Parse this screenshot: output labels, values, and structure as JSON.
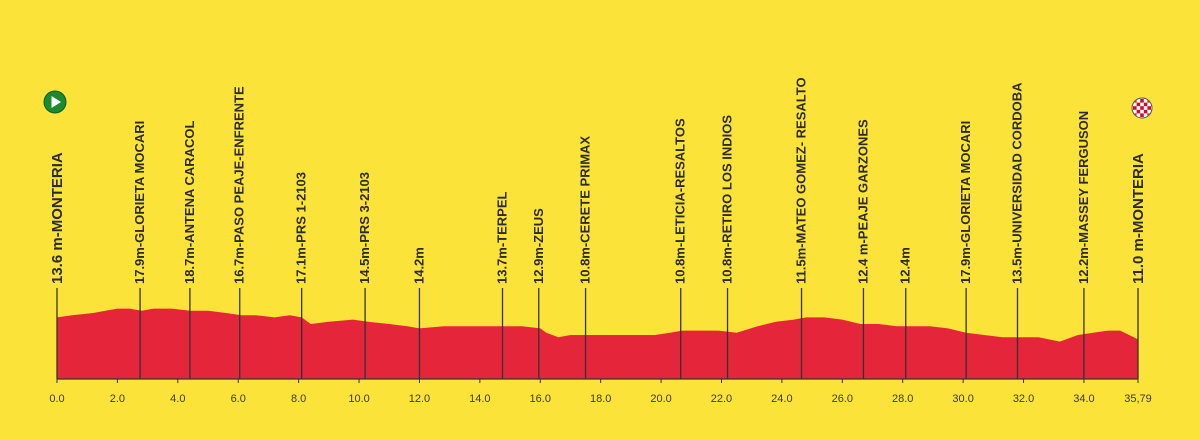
{
  "chart_data": {
    "type": "area",
    "xlim": [
      0,
      35.79
    ],
    "ylim": [
      0,
      40
    ],
    "colors": {
      "background": "#fce33a",
      "area": "#e5263a",
      "stroke": "#333333",
      "start_icon": "#1e8a2e",
      "finish_icon": "#c8102e"
    },
    "x_ticks": [
      "0.0",
      "2.0",
      "4.0",
      "6.0",
      "8.0",
      "10.0",
      "12.0",
      "14.0",
      "16.0",
      "18.0",
      "20.0",
      "22.0",
      "24.0",
      "26.0",
      "28.0",
      "30.0",
      "32.0",
      "34.0",
      "35,79"
    ],
    "profile": {
      "x": [
        0,
        0.5,
        1.2,
        1.6,
        2.0,
        2.4,
        2.8,
        3.2,
        3.8,
        4.4,
        5.0,
        5.6,
        6.1,
        6.6,
        7.2,
        7.7,
        8.1,
        8.4,
        9.0,
        9.8,
        10.3,
        11.0,
        11.6,
        12.0,
        12.8,
        13.6,
        14.2,
        14.8,
        15.4,
        16.0,
        16.2,
        16.6,
        17.0,
        17.6,
        18.2,
        19.0,
        19.8,
        20.3,
        20.7,
        21.3,
        21.9,
        22.5,
        23.2,
        23.8,
        24.4,
        24.8,
        25.4,
        26.0,
        26.6,
        27.2,
        27.8,
        28.3,
        28.9,
        29.5,
        30.1,
        30.7,
        31.3,
        31.9,
        32.5,
        33.2,
        33.8,
        34.3,
        34.8,
        35.2,
        35.5,
        35.79
      ],
      "y": [
        28,
        29,
        30,
        31,
        32,
        32,
        31,
        32,
        32,
        31,
        31,
        30,
        29,
        29,
        28,
        29,
        28,
        25,
        26,
        27,
        26,
        25,
        24,
        23,
        24,
        24,
        24,
        24,
        24,
        23,
        21,
        19,
        20,
        20,
        20,
        20,
        20,
        21,
        22,
        22,
        22,
        21,
        24,
        26,
        27,
        28,
        28,
        27,
        25,
        25,
        24,
        24,
        24,
        23,
        21,
        20,
        19,
        19,
        19,
        17,
        20,
        21,
        22,
        22,
        20,
        18
      ]
    },
    "markers": [
      {
        "km": 0.0,
        "label": "13.6 m-MONTERIA",
        "big": true
      },
      {
        "km": 2.75,
        "label": "17.9m-GLORIETA MOCARI"
      },
      {
        "km": 4.4,
        "label": "18.7m-ANTENA CARACOL"
      },
      {
        "km": 6.05,
        "label": "16.7m-PASO PEAJE-ENFRENTE"
      },
      {
        "km": 8.1,
        "label": "17.1m-PRS 1-2103"
      },
      {
        "km": 10.2,
        "label": "14.5m-PRS 3-2103"
      },
      {
        "km": 12.0,
        "label": "14.2m"
      },
      {
        "km": 14.75,
        "label": "13.7m-TERPEL"
      },
      {
        "km": 15.95,
        "label": "12.9m-ZEUS"
      },
      {
        "km": 17.5,
        "label": "10.8m-CERETE PRIMAX"
      },
      {
        "km": 20.65,
        "label": "10.8m-LETICIA-RESALTOS"
      },
      {
        "km": 22.2,
        "label": "10.8m-RETIRO LOS INDIOS"
      },
      {
        "km": 24.65,
        "label": "11.5m-MATEO GOMEZ- RESALTO"
      },
      {
        "km": 26.7,
        "label": "12.4 m-PEAJE GARZONES"
      },
      {
        "km": 28.1,
        "label": "12.4m"
      },
      {
        "km": 30.1,
        "label": "17.9m-GLORIETA MOCARI"
      },
      {
        "km": 31.8,
        "label": "13.5m-UNIVERSIDAD CORDOBA"
      },
      {
        "km": 34.0,
        "label": "12.2m-MASSEY FERGUSON"
      },
      {
        "km": 35.79,
        "label": "11.0 m-MONTERIA",
        "big": true
      }
    ]
  }
}
